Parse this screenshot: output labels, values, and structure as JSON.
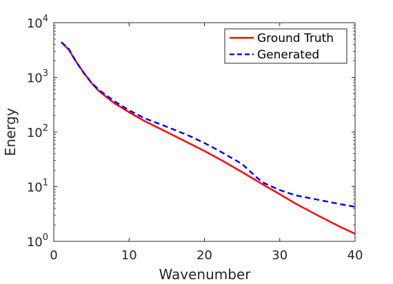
{
  "chart_data": {
    "type": "line",
    "xlabel": "Wavenumber",
    "ylabel": "Energy",
    "xlim": [
      0,
      40
    ],
    "ylim": [
      1,
      10000
    ],
    "yscale": "log",
    "grid": false,
    "legend_position": "top-right",
    "x_ticks": [
      0,
      10,
      20,
      30,
      40
    ],
    "x_tick_labels": [
      "0",
      "10",
      "20",
      "30",
      "40"
    ],
    "y_ticks": [
      1,
      10,
      100,
      1000,
      10000
    ],
    "y_tick_labels": [
      {
        "base": "10",
        "exp": "0"
      },
      {
        "base": "10",
        "exp": "1"
      },
      {
        "base": "10",
        "exp": "2"
      },
      {
        "base": "10",
        "exp": "3"
      },
      {
        "base": "10",
        "exp": "4"
      }
    ],
    "series": [
      {
        "name": "Ground Truth",
        "color": "#ff0000",
        "style": "solid",
        "x": [
          1,
          2,
          3,
          4,
          5,
          6,
          8,
          10,
          12,
          15,
          18,
          20,
          22,
          25,
          28,
          30,
          32,
          35,
          38,
          40
        ],
        "y": [
          4400,
          3200,
          1900,
          1200,
          790,
          560,
          340,
          230,
          160,
          100,
          62,
          45,
          32,
          18.5,
          10.5,
          7.3,
          5.0,
          3.0,
          1.85,
          1.38
        ]
      },
      {
        "name": "Generated",
        "color": "#0000ff",
        "style": "dashed",
        "x": [
          1,
          2,
          3,
          4,
          5,
          6,
          8,
          10,
          12,
          15,
          18,
          20,
          22,
          25,
          27,
          28,
          30,
          32,
          35,
          38,
          40
        ],
        "y": [
          4400,
          3300,
          1900,
          1200,
          800,
          590,
          370,
          250,
          180,
          125,
          85,
          63,
          45,
          26,
          14.5,
          11.5,
          8.7,
          7.0,
          5.8,
          4.8,
          4.3
        ]
      }
    ]
  }
}
